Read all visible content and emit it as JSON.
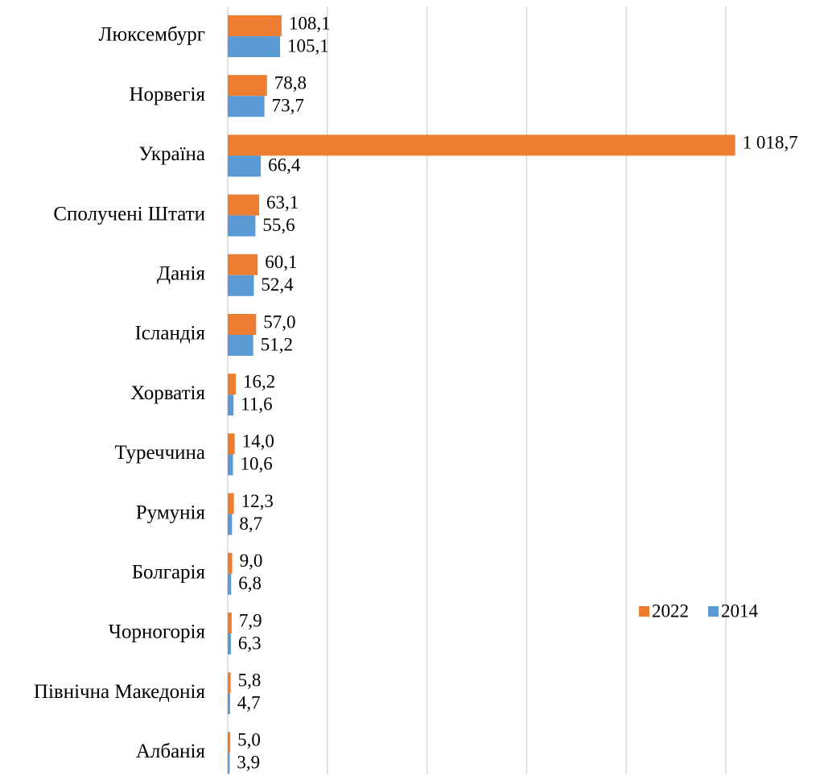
{
  "chart_data": {
    "type": "hbar",
    "categories": [
      "Люксембург",
      "Норвегія",
      "Україна",
      "Сполучені Штати",
      "Данія",
      "Ісландія",
      "Хорватія",
      "Туреччина",
      "Румунія",
      "Болгарія",
      "Чорногорія",
      "Північна Македонія",
      "Албанія"
    ],
    "series": [
      {
        "name": "2022",
        "color": "#ed7d31",
        "values": [
          108.1,
          78.8,
          1018.7,
          63.1,
          60.1,
          57.0,
          16.2,
          14.0,
          12.3,
          9.0,
          7.9,
          5.8,
          5.0
        ],
        "value_labels": [
          "108,1",
          "78,8",
          "1 018,7",
          "63,1",
          "60,1",
          "57,0",
          "16,2",
          "14,0",
          "12,3",
          "9,0",
          "7,9",
          "5,8",
          "5,0"
        ]
      },
      {
        "name": "2014",
        "color": "#5b9bd5",
        "values": [
          105.1,
          73.7,
          66.4,
          55.6,
          52.4,
          51.2,
          11.6,
          10.6,
          8.7,
          6.8,
          6.3,
          4.7,
          3.9
        ],
        "value_labels": [
          "105,1",
          "73,7",
          "66,4",
          "55,6",
          "52,4",
          "51,2",
          "11,6",
          "10,6",
          "8,7",
          "6,8",
          "6,3",
          "4,7",
          "3,9"
        ]
      }
    ],
    "xlim": [
      0,
      1000
    ],
    "xticks": [
      0,
      200,
      400,
      600,
      800,
      1000
    ],
    "grid": true,
    "legend": "right"
  }
}
